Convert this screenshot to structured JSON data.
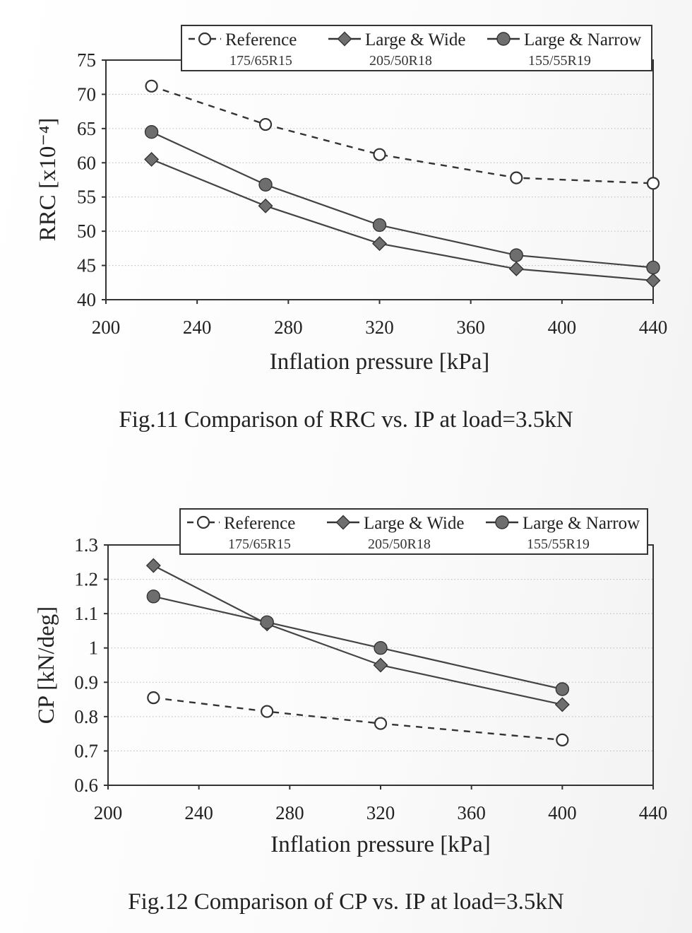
{
  "figures": [
    {
      "caption": "Fig.11 Comparison of RRC vs. IP at load=3.5kN"
    },
    {
      "caption": "Fig.12 Comparison of CP vs. IP at load=3.5kN"
    }
  ],
  "chart_data": [
    {
      "type": "line",
      "title": "",
      "xlabel": "Inflation pressure  [kPa]",
      "ylabel": "RRC  [x10⁻⁴]",
      "xlim": [
        200,
        440
      ],
      "ylim": [
        40,
        75
      ],
      "xticks": [
        200,
        240,
        280,
        320,
        360,
        400,
        440
      ],
      "yticks": [
        40,
        45,
        50,
        55,
        60,
        65,
        70,
        75
      ],
      "grid": "horizontal dotted",
      "legend_position": "top-right",
      "x": [
        220,
        270,
        320,
        380,
        440
      ],
      "series": [
        {
          "name": "Reference",
          "sub": "175/65R15",
          "marker": "open-circle",
          "line": "dashed",
          "values": [
            71.2,
            65.6,
            61.2,
            57.8,
            57.0
          ]
        },
        {
          "name": "Large & Wide",
          "sub": "205/50R18",
          "marker": "diamond",
          "line": "solid",
          "values": [
            60.5,
            53.7,
            48.2,
            44.5,
            42.8
          ]
        },
        {
          "name": "Large & Narrow",
          "sub": "155/55R19",
          "marker": "filled-circle",
          "line": "solid",
          "values": [
            64.5,
            56.8,
            50.9,
            46.5,
            44.7
          ]
        }
      ]
    },
    {
      "type": "line",
      "title": "",
      "xlabel": "Inflation pressure  [kPa]",
      "ylabel": "CP  [kN/deg]",
      "xlim": [
        200,
        440
      ],
      "ylim": [
        0.6,
        1.3
      ],
      "xticks": [
        200,
        240,
        280,
        320,
        360,
        400,
        440
      ],
      "yticks": [
        "0.6",
        "0.7",
        "0.8",
        "0.9",
        "1",
        "1.1",
        "1.2",
        "1.3"
      ],
      "grid": "horizontal dotted",
      "legend_position": "top-right",
      "x": [
        220,
        270,
        320,
        400
      ],
      "series": [
        {
          "name": "Reference",
          "sub": "175/65R15",
          "marker": "open-circle",
          "line": "dashed",
          "values": [
            0.855,
            0.815,
            0.78,
            0.732
          ]
        },
        {
          "name": "Large & Wide",
          "sub": "205/50R18",
          "marker": "diamond",
          "line": "solid",
          "values": [
            1.24,
            1.07,
            0.95,
            0.835
          ]
        },
        {
          "name": "Large & Narrow",
          "sub": "155/55R19",
          "marker": "filled-circle",
          "line": "solid",
          "values": [
            1.15,
            1.075,
            1.0,
            0.88
          ]
        }
      ]
    }
  ]
}
